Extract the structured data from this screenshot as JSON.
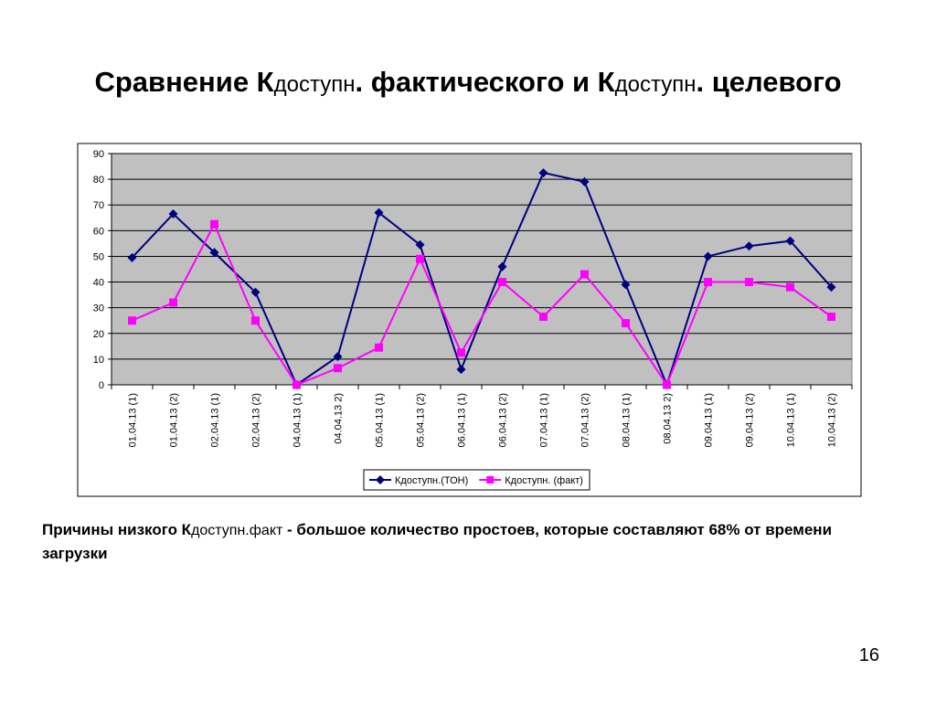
{
  "slide": {
    "title": {
      "part1": "Сравнение К",
      "sub1": "доступн",
      "part2": ". фактического и К",
      "sub2": "доступн",
      "part3": ". целевого"
    },
    "note": {
      "part1": "Причины низкого К",
      "sub": "доступн.факт",
      "part2": " - большое количество простоев, которые составляют 68%  от времени загрузки"
    },
    "page_number": "16"
  },
  "chart_data": {
    "type": "line",
    "categories": [
      "01.04.13 (1)",
      "01.04.13 (2)",
      "02.04.13 (1)",
      "02.04.13 (2)",
      "04.04.13 (1)",
      "04.04.13 2)",
      "05.04.13 (1)",
      "05.04.13 (2)",
      "06.04.13 (1)",
      "06.04.13 (2)",
      "07.04.13 (1)",
      "07.04.13 (2)",
      "08.04.13 (1)",
      "08.04.13 2)",
      "09.04.13 (1)",
      "09.04.13 (2)",
      "10.04.13 (1)",
      "10.04.13 (2)"
    ],
    "series": [
      {
        "name": "Кдоступн.(ТОН)",
        "color": "#000080",
        "marker": "diamond",
        "values": [
          49.5,
          66.5,
          51.5,
          36,
          0,
          11,
          67,
          54.5,
          6,
          46,
          82.5,
          79,
          39,
          0,
          50,
          54,
          56,
          38
        ]
      },
      {
        "name": "Кдоступн. (факт)",
        "color": "#ff00ff",
        "marker": "square",
        "values": [
          25,
          32,
          62.5,
          25,
          0,
          6.5,
          14.5,
          49,
          12.5,
          40,
          26.5,
          43,
          24,
          0,
          40,
          40,
          38,
          26.5
        ]
      }
    ],
    "ylim": [
      0,
      90
    ],
    "yticks": [
      0,
      10,
      20,
      30,
      40,
      50,
      60,
      70,
      80,
      90
    ],
    "grid": true,
    "plot_background": "#c0c0c0",
    "legend_position": "bottom"
  }
}
